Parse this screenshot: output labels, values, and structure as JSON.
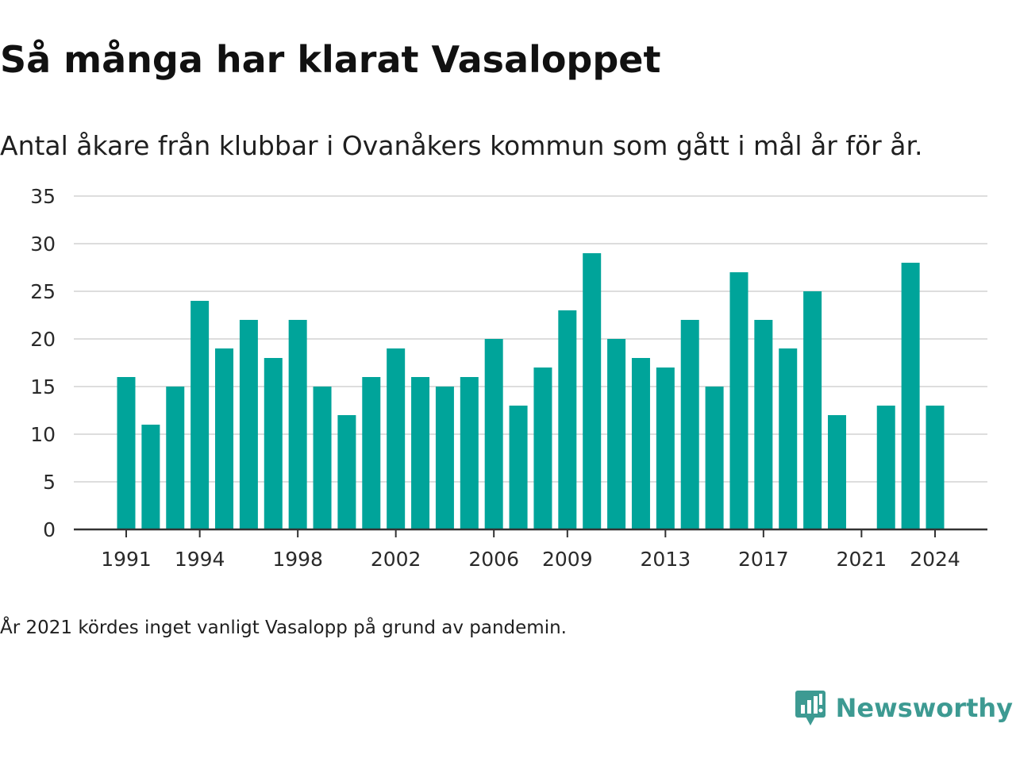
{
  "header": {
    "title": "Så många har klarat Vasaloppet",
    "subtitle": "Antal åkare från klubbar i Ovanåkers kommun som gått i mål år för år."
  },
  "footer": {
    "note": "År 2021 kördes inget vanligt Vasalopp på grund av pandemin.",
    "brand": "Newsworthy",
    "brand_icon": "newsworthy-logo-icon"
  },
  "colors": {
    "bar": "#00a49a",
    "grid": "#dddddd",
    "axis": "#333333",
    "brand": "#3d9a92"
  },
  "chart_data": {
    "type": "bar",
    "title": "Så många har klarat Vasaloppet",
    "subtitle": "Antal åkare från klubbar i Ovanåkers kommun som gått i mål år för år.",
    "xlabel": "",
    "ylabel": "",
    "categories": [
      1991,
      1992,
      1993,
      1994,
      1995,
      1996,
      1997,
      1998,
      1999,
      2000,
      2001,
      2002,
      2003,
      2004,
      2005,
      2006,
      2007,
      2008,
      2009,
      2010,
      2011,
      2012,
      2013,
      2014,
      2015,
      2016,
      2017,
      2018,
      2019,
      2020,
      2021,
      2022,
      2023,
      2024
    ],
    "values": [
      16,
      11,
      15,
      24,
      19,
      22,
      18,
      22,
      15,
      12,
      16,
      19,
      16,
      15,
      16,
      20,
      13,
      17,
      23,
      29,
      20,
      18,
      17,
      22,
      15,
      27,
      22,
      19,
      25,
      12,
      null,
      13,
      28,
      13
    ],
    "x_tick_labels": [
      "1991",
      "1994",
      "1998",
      "2002",
      "2006",
      "2009",
      "2013",
      "2017",
      "2021",
      "2024"
    ],
    "y_ticks": [
      0,
      5,
      10,
      15,
      20,
      25,
      30,
      35
    ],
    "ylim": [
      0,
      35
    ],
    "grid": true,
    "legend": "none"
  }
}
